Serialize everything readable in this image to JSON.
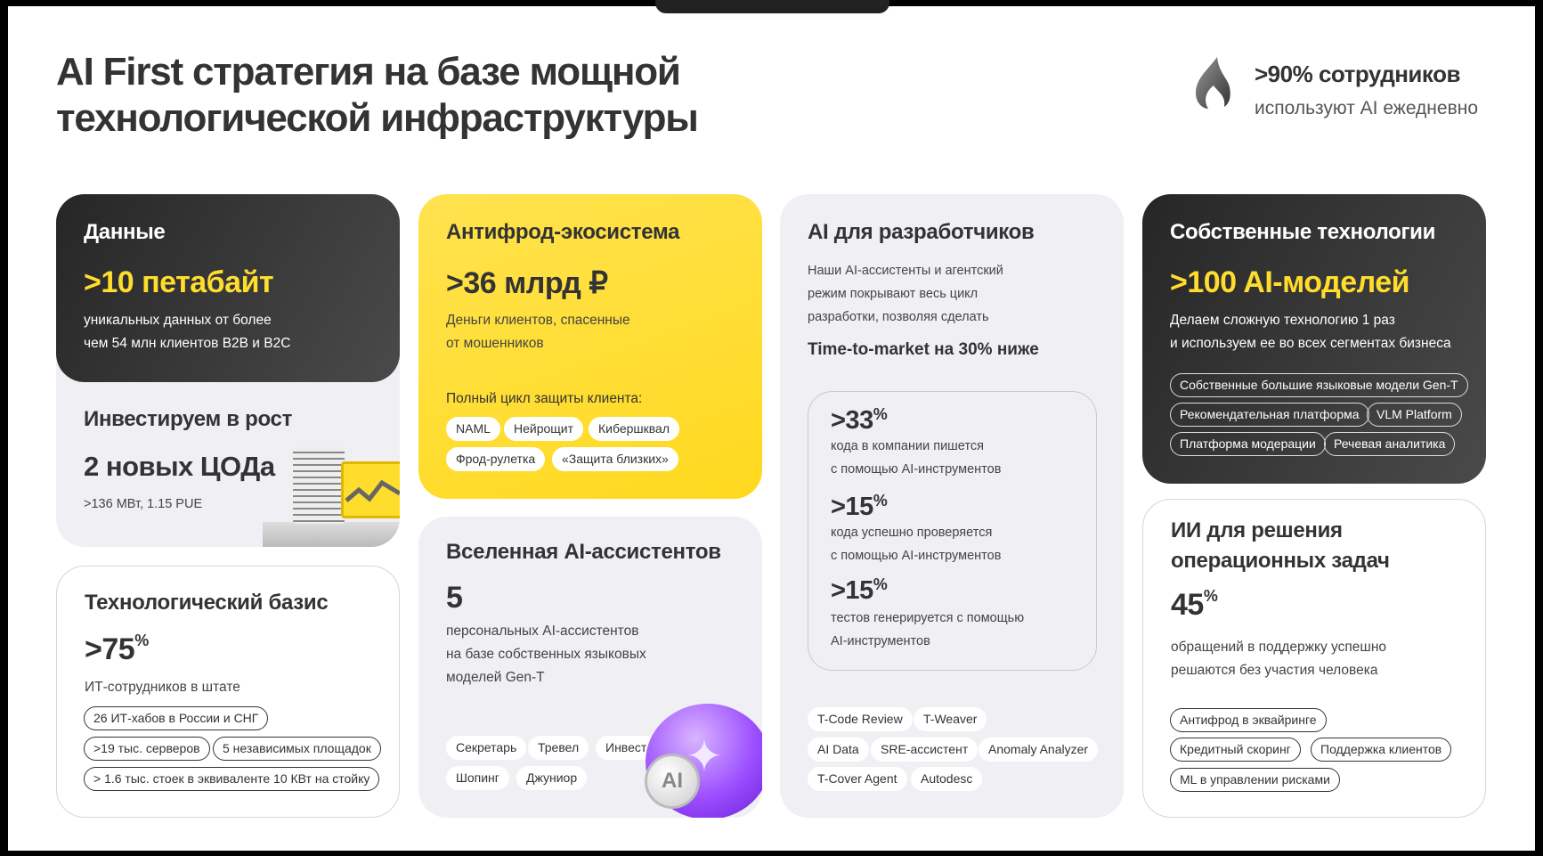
{
  "title": {
    "line1": "AI First стратегия на базе мощной",
    "line2": "технологической инфраструктуры"
  },
  "kpi": {
    "icon": "flame-icon",
    "value": ">90% сотрудников",
    "label": "используют AI ежедневно"
  },
  "colors": {
    "accent_yellow": "#FFDD2D",
    "dark_card": "#2b2b2b",
    "gray_card": "#f0f0f4"
  },
  "data_card": {
    "heading": "Данные",
    "value": ">10 петабайт",
    "text": [
      "уникальных данных от более",
      "чем 54 млн клиентов B2B и B2C"
    ]
  },
  "invest_card": {
    "heading": "Инвестируем в рост",
    "value": "2 новых ЦОДа",
    "text": ">136 МВт, 1.15 PUE"
  },
  "tech_card": {
    "heading": "Технологический базис",
    "value": ">75",
    "unit": "%",
    "text": "ИТ-сотрудников в штате",
    "chips": [
      "26 ИТ-хабов в России и СНГ",
      ">19 тыс. серверов",
      "5 независимых площадок",
      "> 1.6 тыс. стоек в эквиваленте 10 КВт на стойку"
    ]
  },
  "antifraud_card": {
    "heading": "Антифрод-экосистема",
    "value": ">36 млрд ₽",
    "text": [
      "Деньги клиентов, спасенные",
      "от мошенников"
    ],
    "subheading": "Полный цикл защиты клиента:",
    "chips": [
      "NAML",
      "Нейрощит",
      "Кибершквал",
      "Фрод-рулетка",
      "«Защита близких»"
    ]
  },
  "assistants_card": {
    "heading": "Вселенная AI-ассистентов",
    "value": "5",
    "text": [
      "персональных AI-ассистентов",
      "на базе собственных языковых",
      "моделей Gen-T"
    ],
    "chips": [
      "Секретарь",
      "Тревел",
      "Инвест",
      "Шопинг",
      "Джуниор"
    ],
    "badge": "AI"
  },
  "dev_card": {
    "heading": "AI для разработчиков",
    "text": [
      "Наши AI-ассистенты и агентский",
      "режим покрывают весь цикл",
      "разработки, позволяя сделать"
    ],
    "highlight": "Time-to-market на 30% ниже",
    "stats": [
      {
        "value": ">33",
        "unit": "%",
        "text": [
          "кода в компании пишется",
          "с помощью AI-инструментов"
        ]
      },
      {
        "value": ">15",
        "unit": "%",
        "text": [
          "кода успешно проверяется",
          "с помощью AI-инструментов"
        ]
      },
      {
        "value": ">15",
        "unit": "%",
        "text": [
          "тестов генерируется с помощью",
          "AI-инструментов"
        ]
      }
    ],
    "chips": [
      "T-Code Review",
      "T-Weaver",
      "AI Data",
      "SRE-ассистент",
      "Anomaly Analyzer",
      "T-Cover Agent",
      "Autodesc"
    ]
  },
  "own_tech_card": {
    "heading": "Собственные технологии",
    "value": ">100 AI-моделей",
    "text": [
      "Делаем сложную технологию 1 раз",
      "и используем ее во всех сегментах бизнеса"
    ],
    "chips": [
      "Собственные большие языковые модели Gen-T",
      "Рекомендательная платформа",
      "VLM Platform",
      "Платформа модерации",
      "Речевая аналитика"
    ]
  },
  "ops_card": {
    "heading": [
      "ИИ для решения",
      "операционных задач"
    ],
    "value": "45",
    "unit": "%",
    "text": [
      "обращений в поддержку успешно",
      "решаются без участия человека"
    ],
    "chips": [
      "Антифрод в эквайринге",
      "Кредитный скоринг",
      "Поддержка клиентов",
      "ML в управлении рисками"
    ]
  }
}
